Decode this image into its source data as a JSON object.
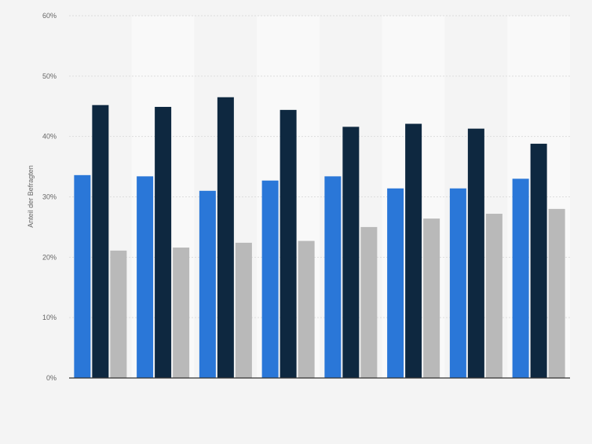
{
  "chart_data": {
    "type": "bar",
    "title": "",
    "xlabel": "",
    "ylabel": "Anteil der Befragten",
    "ylim": [
      0,
      60
    ],
    "yticks": [
      0,
      10,
      20,
      30,
      40,
      50,
      60
    ],
    "ytick_labels": [
      "0%",
      "10%",
      "20%",
      "30%",
      "40%",
      "50%",
      "60%"
    ],
    "grid": true,
    "legend": "none",
    "categories": [
      "",
      "",
      "",
      "",
      "",
      "",
      "",
      ""
    ],
    "series": [
      {
        "color": "#2a77d8",
        "values": [
          33.6,
          33.4,
          31.0,
          32.7,
          33.4,
          31.4,
          31.4,
          33.0
        ]
      },
      {
        "color": "#0e2840",
        "values": [
          45.2,
          44.9,
          46.5,
          44.4,
          41.6,
          42.1,
          41.3,
          38.8
        ]
      },
      {
        "color": "#b9b9b9",
        "values": [
          21.1,
          21.6,
          22.4,
          22.7,
          25.0,
          26.4,
          27.2,
          28.0
        ]
      }
    ]
  },
  "colors": {
    "background": "#f4f4f4",
    "band_light": "#f9f9f9",
    "band_dark": "#f4f4f4",
    "grid": "#dddddd",
    "axis": "#333333",
    "tick_text": "#666666"
  }
}
